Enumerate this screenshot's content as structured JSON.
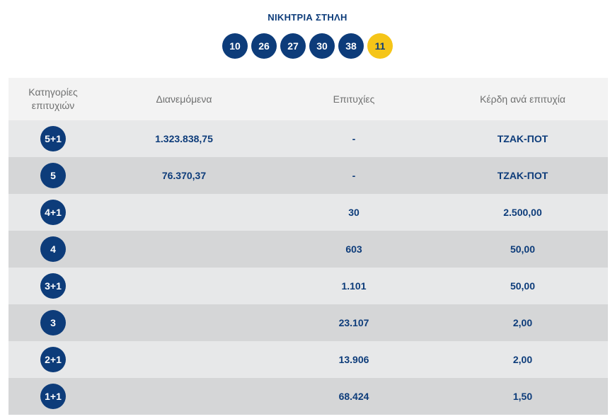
{
  "title": "ΝΙΚΗΤΡΙΑ ΣΤΗΛΗ",
  "numbers": [
    "10",
    "26",
    "27",
    "30",
    "38"
  ],
  "bonus_number": "11",
  "colors": {
    "primary": "#0d3c7a",
    "bonus": "#f5c518",
    "row_light": "#e7e8e9",
    "row_dark": "#d5d6d7",
    "header_bg": "#f3f3f3",
    "header_text": "#6f7070"
  },
  "table": {
    "headers": {
      "category_line1": "Κατηγορίες",
      "category_line2": "επιτυχιών",
      "distributed": "Διανεμόμενα",
      "winners": "Επιτυχίες",
      "prize": "Κέρδη ανά επιτυχία"
    },
    "rows": [
      {
        "category": "5+1",
        "distributed": "1.323.838,75",
        "winners": "-",
        "prize": "ΤΖΑΚ-ΠΟΤ"
      },
      {
        "category": "5",
        "distributed": "76.370,37",
        "winners": "-",
        "prize": "ΤΖΑΚ-ΠΟΤ"
      },
      {
        "category": "4+1",
        "distributed": "",
        "winners": "30",
        "prize": "2.500,00"
      },
      {
        "category": "4",
        "distributed": "",
        "winners": "603",
        "prize": "50,00"
      },
      {
        "category": "3+1",
        "distributed": "",
        "winners": "1.101",
        "prize": "50,00"
      },
      {
        "category": "3",
        "distributed": "",
        "winners": "23.107",
        "prize": "2,00"
      },
      {
        "category": "2+1",
        "distributed": "",
        "winners": "13.906",
        "prize": "2,00"
      },
      {
        "category": "1+1",
        "distributed": "",
        "winners": "68.424",
        "prize": "1,50"
      }
    ]
  }
}
